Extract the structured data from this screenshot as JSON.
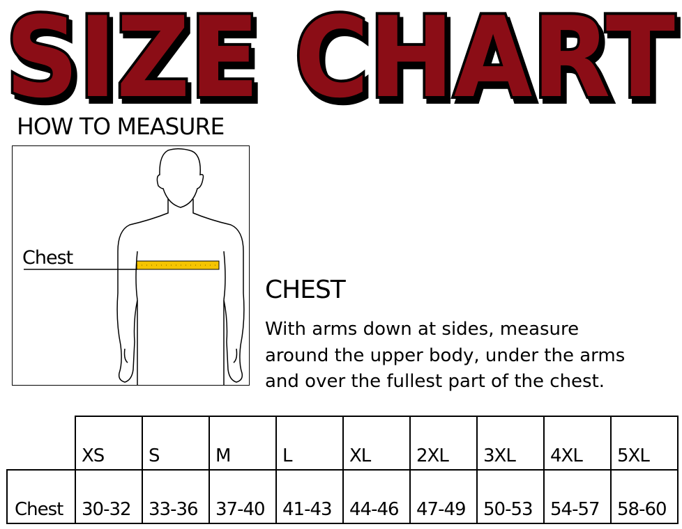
{
  "title": "SIZE CHART",
  "colors": {
    "title_fill": "#8b1014",
    "title_outline": "#000000",
    "tape": "#f5c400"
  },
  "how_to_measure": {
    "heading": "HOW TO MEASURE",
    "figure_label": "Chest"
  },
  "measure": {
    "heading": "CHEST",
    "lines": [
      "With arms down at sides, measure",
      "around the upper body, under the arms",
      "and over the fullest part of the chest."
    ]
  },
  "table": {
    "sizes": [
      "XS",
      "S",
      "M",
      "L",
      "XL",
      "2XL",
      "3XL",
      "4XL",
      "5XL"
    ],
    "rows": [
      {
        "label": "Chest",
        "values": [
          "30-32",
          "33-36",
          "37-40",
          "41-43",
          "44-46",
          "47-49",
          "50-53",
          "54-57",
          "58-60"
        ]
      }
    ]
  }
}
